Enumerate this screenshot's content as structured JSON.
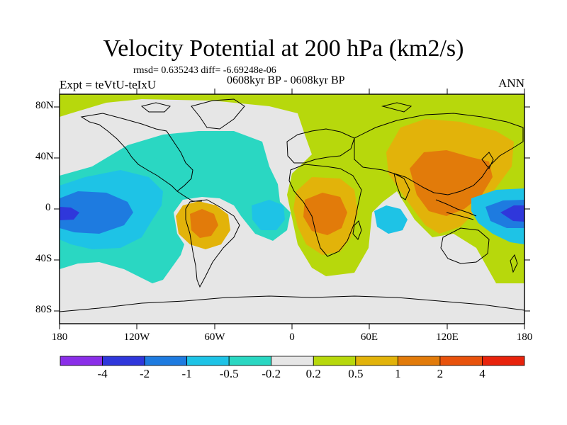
{
  "title": "Velocity Potential at 200 hPa (km2/s)",
  "stats": "rmsd= 0.635243 diff= -6.69248e-06",
  "left_label": "Expt = teVtU-teIxU",
  "center_label": "0608kyr BP - 0608kyr BP",
  "right_label": "ANN",
  "y_ticks": [
    "80N",
    "40N",
    "0",
    "40S",
    "80S"
  ],
  "x_ticks": [
    "180",
    "120W",
    "60W",
    "0",
    "60E",
    "120E",
    "180"
  ],
  "colorbar": {
    "labels": [
      "-4",
      "-2",
      "-1",
      "-0.5",
      "-0.2",
      "0.2",
      "0.5",
      "1",
      "2",
      "4"
    ],
    "colors": [
      "#8a2ee8",
      "#2f37db",
      "#1e7be0",
      "#1ec3e6",
      "#2ad7c2",
      "#e6e6e6",
      "#b7d80c",
      "#e2b30a",
      "#e27b0a",
      "#e8520c",
      "#e8230c"
    ]
  },
  "map_data": {
    "projection": "cylindrical equidistant",
    "lon_range": [
      -180,
      180
    ],
    "lat_range": [
      -90,
      90
    ],
    "levels": [
      -4,
      -2,
      -1,
      -0.5,
      -0.2,
      0.2,
      0.5,
      1,
      2,
      4
    ]
  }
}
